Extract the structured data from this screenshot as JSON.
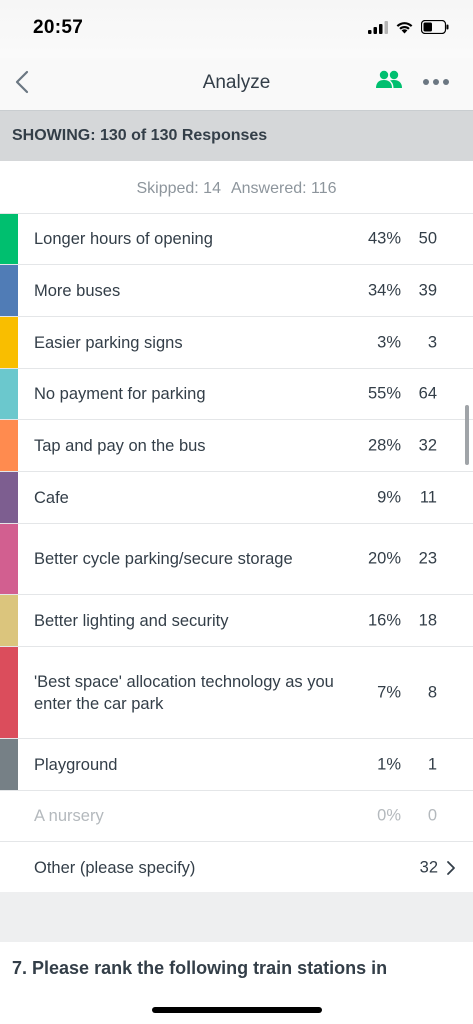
{
  "status": {
    "time": "20:57"
  },
  "nav": {
    "title": "Analyze"
  },
  "showing": "SHOWING: 130 of 130 Responses",
  "stats": {
    "skipped": "Skipped: 14",
    "answered": "Answered: 116"
  },
  "answers": [
    {
      "label": "Longer hours of opening",
      "pct": "43%",
      "count": "50",
      "color": "#00bf6f",
      "muted": false
    },
    {
      "label": "More buses",
      "pct": "34%",
      "count": "39",
      "color": "#507cb6",
      "muted": false
    },
    {
      "label": "Easier parking signs",
      "pct": "3%",
      "count": "3",
      "color": "#f9be00",
      "muted": false
    },
    {
      "label": "No payment for parking",
      "pct": "55%",
      "count": "64",
      "color": "#6bc8cd",
      "muted": false
    },
    {
      "label": "Tap and pay on the bus",
      "pct": "28%",
      "count": "32",
      "color": "#ff8b4f",
      "muted": false
    },
    {
      "label": "Cafe",
      "pct": "9%",
      "count": "11",
      "color": "#7d5e90",
      "muted": false
    },
    {
      "label": "Better cycle parking/secure storage",
      "pct": "20%",
      "count": "23",
      "color": "#d25f90",
      "muted": false
    },
    {
      "label": "Better lighting and security",
      "pct": "16%",
      "count": "18",
      "color": "#dbc57d",
      "muted": false
    },
    {
      "label": "'Best space' allocation technology as you enter the car park",
      "pct": "7%",
      "count": "8",
      "color": "#db4d5c",
      "muted": false
    },
    {
      "label": "Playground",
      "pct": "1%",
      "count": "1",
      "color": "#768086",
      "muted": false
    },
    {
      "label": "A nursery",
      "pct": "0%",
      "count": "0",
      "color": "",
      "muted": true
    }
  ],
  "other": {
    "label": "Other (please specify)",
    "count": "32"
  },
  "next_question": "7. Please rank the following train stations in"
}
